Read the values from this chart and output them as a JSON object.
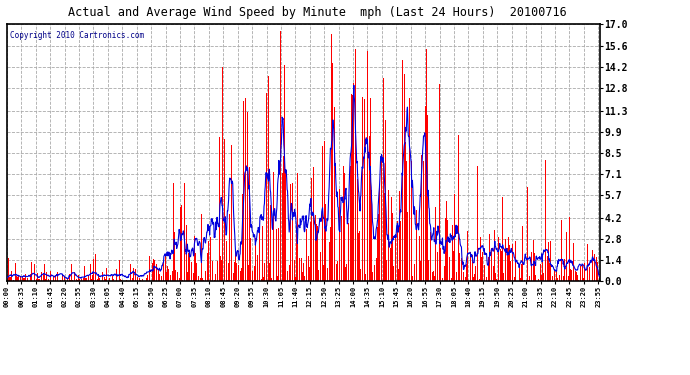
{
  "title": "Actual and Average Wind Speed by Minute  mph (Last 24 Hours)  20100716",
  "copyright": "Copyright 2010 Cartronics.com",
  "background_color": "#ffffff",
  "plot_bg_color": "#ffffff",
  "bar_color": "#ff0000",
  "line_color": "#0000dd",
  "yticks": [
    0.0,
    1.4,
    2.8,
    4.2,
    5.7,
    7.1,
    8.5,
    9.9,
    11.3,
    12.8,
    14.2,
    15.6,
    17.0
  ],
  "ymax": 17.0,
  "ymin": 0.0,
  "n_points": 1440,
  "seed": 7
}
